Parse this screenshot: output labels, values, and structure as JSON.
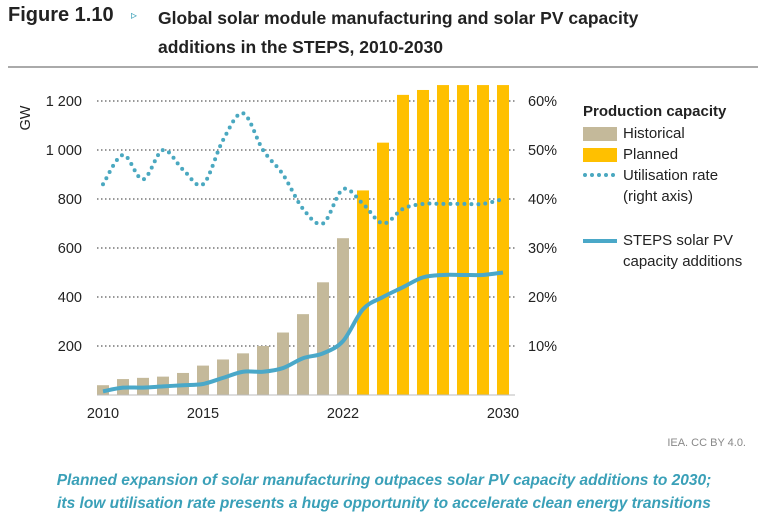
{
  "figure": {
    "label": "Figure 1.10",
    "arrow": "▹",
    "title": "Global solar module manufacturing and solar PV capacity additions in the STEPS, 2010-2030"
  },
  "chart_data": {
    "type": "bar",
    "title": "Global solar module manufacturing and solar PV capacity additions in the STEPS, 2010-2030",
    "ylabel": "GW",
    "ylim": [
      0,
      1200
    ],
    "y_ticks": [
      "200",
      "400",
      "600",
      "800",
      "1 000",
      "1 200"
    ],
    "y2lim": [
      0,
      60
    ],
    "y2_ticks": [
      "10%",
      "20%",
      "30%",
      "40%",
      "50%",
      "60%"
    ],
    "x_tick_labels": [
      "2010",
      "2015",
      "2022",
      "2030"
    ],
    "grid": true,
    "legend_position": "right",
    "categories": [
      2010,
      2011,
      2012,
      2013,
      2014,
      2015,
      2016,
      2017,
      2018,
      2019,
      2020,
      2021,
      2022,
      2023,
      2024,
      2025,
      2026,
      2027,
      2028,
      2029,
      2030
    ],
    "legend_title": "Production capacity",
    "series": [
      {
        "name": "Historical",
        "type": "bar",
        "color": "#c4b99a",
        "values": [
          40,
          65,
          70,
          75,
          90,
          120,
          145,
          170,
          200,
          255,
          330,
          460,
          640,
          null,
          null,
          null,
          null,
          null,
          null,
          null,
          null
        ]
      },
      {
        "name": "Planned",
        "type": "bar",
        "color": "#ffc000",
        "values": [
          null,
          null,
          null,
          null,
          null,
          null,
          null,
          null,
          null,
          null,
          null,
          null,
          null,
          835,
          1030,
          1225,
          1245,
          1265,
          1265,
          1265,
          1265
        ]
      },
      {
        "name": "Utilisation rate (right axis)",
        "label_lines": [
          "Utilisation rate",
          "(right axis)"
        ],
        "type": "dotted-line",
        "axis": "right",
        "unit": "%",
        "color": "#4aa8c0",
        "values": [
          43,
          49,
          44,
          50,
          46,
          43,
          52,
          57.5,
          50,
          45,
          38,
          35,
          42,
          39,
          35,
          38,
          39,
          39,
          39,
          39,
          40
        ]
      },
      {
        "name": "STEPS solar PV capacity additions",
        "label_lines": [
          "STEPS solar PV",
          "capacity additions"
        ],
        "type": "line",
        "color": "#4aa8c8",
        "values": [
          15,
          30,
          30,
          35,
          40,
          45,
          70,
          95,
          95,
          110,
          150,
          170,
          220,
          350,
          400,
          440,
          480,
          490,
          490,
          490,
          500
        ]
      }
    ]
  },
  "credit": "IEA. CC BY 4.0.",
  "caption": [
    "Planned expansion of solar manufacturing outpaces solar PV capacity additions to 2030;",
    "its low utilisation rate presents a huge opportunity to accelerate clean energy transitions"
  ]
}
